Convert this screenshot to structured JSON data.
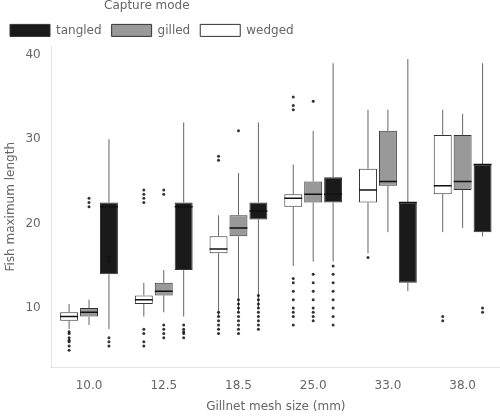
{
  "chart_data": {
    "type": "box",
    "xlabel": "Gillnet mesh size (mm)",
    "ylabel": "Fish maximum length",
    "legend_title": "Capture mode",
    "categories": [
      "10.0",
      "12.5",
      "18.5",
      "25.0",
      "33.0",
      "38.0"
    ],
    "series": [
      {
        "name": "wedged",
        "color": "#ffffff",
        "values": [
          {
            "q1": 8.5,
            "median": 9.0,
            "q3": 9.5,
            "whislo": 7.5,
            "whishi": 10.5,
            "fliers": [
              5.0,
              5.5,
              6.0,
              6.2,
              6.5,
              7.0,
              7.2
            ]
          },
          {
            "q1": 10.5,
            "median": 11.0,
            "q3": 11.5,
            "whislo": 9.0,
            "whishi": 13.0,
            "fliers": [
              5.5,
              6.0,
              7.0,
              7.5,
              22.5,
              23.0,
              23.5,
              24.0
            ]
          },
          {
            "q1": 16.5,
            "median": 17.0,
            "q3": 18.5,
            "whislo": 9.0,
            "whishi": 21.0,
            "fliers": [
              7.0,
              7.5,
              8.0,
              8.5,
              9.0,
              9.5,
              27.5,
              28.0
            ]
          },
          {
            "q1": 22.0,
            "median": 23.0,
            "q3": 23.5,
            "whislo": 15.0,
            "whishi": 27.0,
            "fliers": [
              8.0,
              9.0,
              9.5,
              10.0,
              11.0,
              12.0,
              13.0,
              13.5,
              33.5,
              34.0,
              35.0
            ]
          },
          {
            "q1": 22.5,
            "median": 24.0,
            "q3": 26.5,
            "whislo": 16.5,
            "whishi": 33.5,
            "fliers": [
              16.0
            ]
          },
          {
            "q1": 23.5,
            "median": 24.5,
            "q3": 30.5,
            "whislo": 19.0,
            "whishi": 33.5,
            "fliers": [
              8.5,
              9.0
            ]
          }
        ]
      },
      {
        "name": "gilled",
        "color": "#999999",
        "values": [
          {
            "q1": 9.0,
            "median": 9.5,
            "q3": 10.0,
            "whislo": 8.0,
            "whishi": 11.0,
            "fliers": [
              22.0,
              22.5,
              23.0
            ]
          },
          {
            "q1": 11.5,
            "median": 12.0,
            "q3": 13.0,
            "whislo": 9.5,
            "whishi": 14.5,
            "fliers": [
              6.5,
              7.0,
              7.5,
              8.0,
              23.5,
              24.0
            ]
          },
          {
            "q1": 18.5,
            "median": 19.5,
            "q3": 21.0,
            "whislo": 9.5,
            "whishi": 26.0,
            "fliers": [
              7.0,
              7.5,
              8.0,
              8.5,
              9.0,
              9.5,
              10.0,
              10.5,
              11.0,
              31.0
            ]
          },
          {
            "q1": 22.5,
            "median": 23.5,
            "q3": 25.0,
            "whislo": 15.5,
            "whishi": 31.0,
            "fliers": [
              8.5,
              9.0,
              9.5,
              10.0,
              11.0,
              12.0,
              13.0,
              14.0,
              34.5
            ]
          },
          {
            "q1": 24.5,
            "median": 25.0,
            "q3": 31.0,
            "whislo": 19.0,
            "whishi": 33.5,
            "fliers": []
          },
          {
            "q1": 24.0,
            "median": 25.0,
            "q3": 30.5,
            "whislo": 19.5,
            "whishi": 33.0,
            "fliers": []
          }
        ]
      },
      {
        "name": "tangled",
        "color": "#1a1a1a",
        "values": [
          {
            "q1": 14.0,
            "median": 22.0,
            "q3": 22.5,
            "whislo": 7.5,
            "whishi": 30.0,
            "fliers": [
              5.5,
              6.0,
              6.5,
              15.5,
              16.0
            ]
          },
          {
            "q1": 14.5,
            "median": 22.0,
            "q3": 22.5,
            "whislo": 9.0,
            "whishi": 32.0,
            "fliers": [
              6.5,
              7.0,
              7.2,
              7.5,
              8.0
            ]
          },
          {
            "q1": 20.5,
            "median": 21.5,
            "q3": 22.5,
            "whislo": 10.0,
            "whishi": 32.0,
            "fliers": [
              7.5,
              8.0,
              8.5,
              9.0,
              9.5,
              10.0,
              10.5,
              11.0,
              11.5
            ]
          },
          {
            "q1": 22.5,
            "median": 23.5,
            "q3": 25.5,
            "whislo": 15.5,
            "whishi": 39.0,
            "fliers": [
              8.0,
              9.0,
              10.0,
              11.0,
              12.0,
              13.0,
              14.0,
              15.0
            ]
          },
          {
            "q1": 13.0,
            "median": 22.5,
            "q3": 22.5,
            "whislo": 12.0,
            "whishi": 39.5,
            "fliers": []
          },
          {
            "q1": 19.0,
            "median": 27.0,
            "q3": 27.0,
            "whislo": 18.5,
            "whishi": 39.0,
            "fliers": [
              9.5,
              10.0
            ]
          }
        ]
      }
    ],
    "ylim": [
      3,
      41
    ],
    "yticks": [
      10,
      20,
      30,
      40
    ],
    "grid": false,
    "legend": "upper left"
  }
}
